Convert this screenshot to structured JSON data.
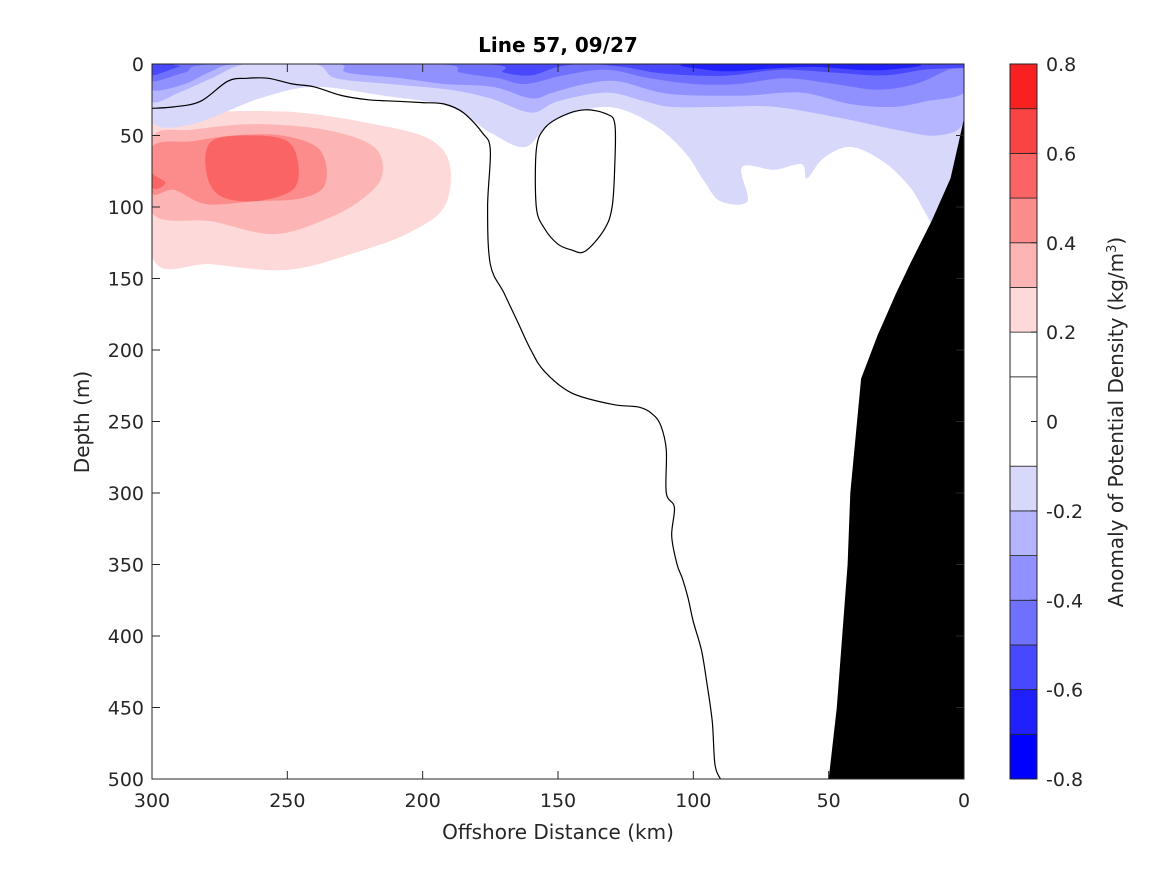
{
  "chart_data": {
    "type": "contour",
    "title": "Line 57, 09/27",
    "xlabel": "Offshore Distance (km)",
    "ylabel": "Depth (m)",
    "xlim": [
      0,
      300
    ],
    "x_reversed": true,
    "ylim": [
      0,
      500
    ],
    "y_reversed": true,
    "x_ticks": [
      300,
      250,
      200,
      150,
      100,
      50,
      0
    ],
    "y_ticks": [
      0,
      50,
      100,
      150,
      200,
      250,
      300,
      350,
      400,
      450,
      500
    ],
    "colorbar": {
      "label": "Anomaly of Potential Density (kg/m",
      "label_sup": "3",
      "label_suffix": ")",
      "lim": [
        -0.8,
        0.8
      ],
      "ticks": [
        "0.8",
        "0.6",
        "0.4",
        "0.2",
        "0",
        "-0.2",
        "-0.4",
        "-0.6",
        "-0.8"
      ],
      "levels": [
        -0.8,
        -0.7,
        -0.6,
        -0.5,
        -0.4,
        -0.3,
        -0.2,
        -0.1,
        0.1,
        0.2,
        0.3,
        0.4,
        0.5,
        0.6,
        0.7,
        0.8
      ],
      "colors": [
        "#0000ff",
        "#2020ff",
        "#4848ff",
        "#7070ff",
        "#9090ff",
        "#b4b4ff",
        "#d8d8fb",
        "#ffffff",
        "#ffffff",
        "#fdd9d9",
        "#fdb4b4",
        "#fc8c8c",
        "#fa6464",
        "#f84444",
        "#f82020",
        "#ff0000"
      ]
    },
    "regions": [
      {
        "level": 0.15,
        "points": [
          [
            300,
            30
          ],
          [
            300,
            180
          ],
          [
            280,
            182
          ],
          [
            255,
            170
          ],
          [
            230,
            150
          ],
          [
            205,
            128
          ],
          [
            187,
            112
          ],
          [
            185,
            70
          ],
          [
            195,
            45
          ],
          [
            215,
            38
          ],
          [
            245,
            30
          ],
          [
            270,
            28
          ],
          [
            290,
            29
          ]
        ]
      },
      {
        "level": 0.25,
        "points": [
          [
            300,
            40
          ],
          [
            300,
            135
          ],
          [
            278,
            140
          ],
          [
            250,
            144
          ],
          [
            225,
            132
          ],
          [
            205,
            118
          ],
          [
            192,
            100
          ],
          [
            190,
            70
          ],
          [
            198,
            52
          ],
          [
            218,
            42
          ],
          [
            245,
            34
          ],
          [
            270,
            33
          ],
          [
            290,
            35
          ]
        ]
      },
      {
        "level": 0.35,
        "points": [
          [
            300,
            52
          ],
          [
            300,
            104
          ],
          [
            278,
            110
          ],
          [
            255,
            119
          ],
          [
            235,
            108
          ],
          [
            222,
            94
          ],
          [
            215,
            78
          ],
          [
            218,
            58
          ],
          [
            236,
            46
          ],
          [
            262,
            42
          ],
          [
            285,
            46
          ]
        ]
      },
      {
        "level": 0.45,
        "points": [
          [
            300,
            58
          ],
          [
            300,
            90
          ],
          [
            292,
            88
          ],
          [
            280,
            98
          ],
          [
            262,
            96
          ],
          [
            245,
            94
          ],
          [
            236,
            84
          ],
          [
            238,
            60
          ],
          [
            252,
            50
          ],
          [
            270,
            50
          ],
          [
            285,
            54
          ]
        ]
      },
      {
        "level": 0.55,
        "points": [
          [
            300,
            58
          ],
          [
            300,
            86
          ],
          [
            295,
            83
          ],
          [
            300,
            76
          ],
          [
            300,
            66
          ]
        ]
      },
      {
        "level": 0.55,
        "points": [
          [
            278,
            54
          ],
          [
            263,
            50
          ],
          [
            250,
            54
          ],
          [
            246,
            70
          ],
          [
            248,
            88
          ],
          [
            262,
            96
          ],
          [
            275,
            92
          ],
          [
            280,
            75
          ]
        ]
      },
      {
        "level": -0.15,
        "points": [
          [
            300,
            0
          ],
          [
            300,
            40
          ],
          [
            285,
            42
          ],
          [
            260,
            24
          ],
          [
            240,
            16
          ],
          [
            215,
            22
          ],
          [
            190,
            30
          ],
          [
            175,
            48
          ],
          [
            162,
            58
          ],
          [
            152,
            40
          ],
          [
            132,
            30
          ],
          [
            115,
            42
          ],
          [
            103,
            62
          ],
          [
            96,
            82
          ],
          [
            90,
            96
          ],
          [
            80,
            96
          ],
          [
            82,
            72
          ],
          [
            70,
            74
          ],
          [
            60,
            70
          ],
          [
            58,
            80
          ],
          [
            52,
            66
          ],
          [
            42,
            58
          ],
          [
            30,
            68
          ],
          [
            20,
            86
          ],
          [
            14,
            105
          ],
          [
            8,
            122
          ],
          [
            0,
            98
          ],
          [
            0,
            0
          ]
        ]
      },
      {
        "level": -0.25,
        "points": [
          [
            300,
            0
          ],
          [
            300,
            26
          ],
          [
            290,
            20
          ],
          [
            278,
            10
          ],
          [
            265,
            0
          ],
          [
            240,
            0
          ],
          [
            232,
            10
          ],
          [
            212,
            14
          ],
          [
            190,
            18
          ],
          [
            175,
            24
          ],
          [
            160,
            34
          ],
          [
            150,
            26
          ],
          [
            132,
            20
          ],
          [
            118,
            26
          ],
          [
            108,
            30
          ],
          [
            90,
            30
          ],
          [
            70,
            30
          ],
          [
            45,
            38
          ],
          [
            25,
            46
          ],
          [
            10,
            50
          ],
          [
            0,
            40
          ],
          [
            0,
            0
          ]
        ]
      },
      {
        "level": -0.35,
        "points": [
          [
            300,
            0
          ],
          [
            300,
            18
          ],
          [
            288,
            14
          ],
          [
            278,
            5
          ],
          [
            268,
            0
          ],
          [
            232,
            0
          ],
          [
            228,
            6
          ],
          [
            208,
            10
          ],
          [
            192,
            14
          ],
          [
            174,
            16
          ],
          [
            160,
            24
          ],
          [
            152,
            20
          ],
          [
            140,
            14
          ],
          [
            128,
            12
          ],
          [
            112,
            20
          ],
          [
            98,
            22
          ],
          [
            80,
            22
          ],
          [
            60,
            20
          ],
          [
            42,
            28
          ],
          [
            26,
            30
          ],
          [
            14,
            26
          ],
          [
            0,
            20
          ],
          [
            0,
            0
          ]
        ]
      },
      {
        "level": -0.45,
        "points": [
          [
            300,
            0
          ],
          [
            300,
            12
          ],
          [
            288,
            6
          ],
          [
            275,
            0
          ],
          [
            196,
            0
          ],
          [
            186,
            6
          ],
          [
            172,
            10
          ],
          [
            162,
            14
          ],
          [
            148,
            8
          ],
          [
            132,
            4
          ],
          [
            116,
            10
          ],
          [
            100,
            14
          ],
          [
            84,
            14
          ],
          [
            66,
            10
          ],
          [
            48,
            14
          ],
          [
            32,
            18
          ],
          [
            18,
            14
          ],
          [
            6,
            4
          ],
          [
            0,
            0
          ]
        ]
      },
      {
        "level": -0.55,
        "points": [
          [
            300,
            0
          ],
          [
            300,
            8
          ],
          [
            290,
            2
          ],
          [
            282,
            0
          ],
          [
            180,
            0
          ],
          [
            170,
            6
          ],
          [
            160,
            8
          ],
          [
            150,
            2
          ],
          [
            140,
            0
          ],
          [
            126,
            2
          ],
          [
            114,
            6
          ],
          [
            100,
            8
          ],
          [
            86,
            8
          ],
          [
            68,
            4
          ],
          [
            48,
            6
          ],
          [
            30,
            8
          ],
          [
            15,
            4
          ],
          [
            0,
            0
          ]
        ]
      },
      {
        "level": -0.65,
        "points": [
          [
            100,
            0
          ],
          [
            95,
            4
          ],
          [
            85,
            5
          ],
          [
            70,
            3
          ],
          [
            55,
            2
          ],
          [
            40,
            4
          ],
          [
            28,
            4
          ],
          [
            20,
            0
          ]
        ]
      }
    ],
    "zero_contours": [
      [
        [
          300,
          31
        ],
        [
          292,
          30
        ],
        [
          282,
          26
        ],
        [
          272,
          12
        ],
        [
          265,
          10
        ],
        [
          257,
          10
        ],
        [
          248,
          14
        ],
        [
          240,
          16
        ],
        [
          230,
          22
        ],
        [
          220,
          25
        ],
        [
          210,
          26
        ],
        [
          200,
          27
        ],
        [
          192,
          28
        ],
        [
          185,
          34
        ],
        [
          178,
          48
        ],
        [
          175,
          60
        ],
        [
          176,
          100
        ],
        [
          175,
          140
        ],
        [
          170,
          160
        ],
        [
          165,
          180
        ],
        [
          160,
          200
        ],
        [
          155,
          215
        ],
        [
          145,
          230
        ],
        [
          130,
          238
        ],
        [
          120,
          240
        ],
        [
          115,
          245
        ],
        [
          112,
          253
        ],
        [
          110,
          270
        ],
        [
          110,
          300
        ],
        [
          107,
          310
        ],
        [
          108,
          330
        ],
        [
          106,
          350
        ],
        [
          104,
          360
        ],
        [
          102,
          373
        ],
        [
          100,
          390
        ],
        [
          97,
          410
        ],
        [
          95,
          433
        ],
        [
          93,
          460
        ],
        [
          92,
          490
        ],
        [
          90,
          500
        ]
      ],
      [
        [
          158,
          60
        ],
        [
          158,
          100
        ],
        [
          155,
          115
        ],
        [
          150,
          126
        ],
        [
          145,
          130
        ],
        [
          140,
          131
        ],
        [
          133,
          116
        ],
        [
          130,
          100
        ],
        [
          129,
          70
        ],
        [
          129,
          42
        ],
        [
          132,
          35
        ],
        [
          140,
          32
        ],
        [
          148,
          36
        ],
        [
          155,
          45
        ]
      ]
    ],
    "shelf": [
      [
        0,
        38
      ],
      [
        2,
        55
      ],
      [
        5,
        80
      ],
      [
        12,
        110
      ],
      [
        20,
        140
      ],
      [
        25,
        160
      ],
      [
        32,
        190
      ],
      [
        38,
        220
      ],
      [
        40,
        260
      ],
      [
        42,
        300
      ],
      [
        43,
        350
      ],
      [
        45,
        400
      ],
      [
        47,
        450
      ],
      [
        50,
        500
      ],
      [
        0,
        500
      ]
    ],
    "shelf_color": "#000000"
  }
}
